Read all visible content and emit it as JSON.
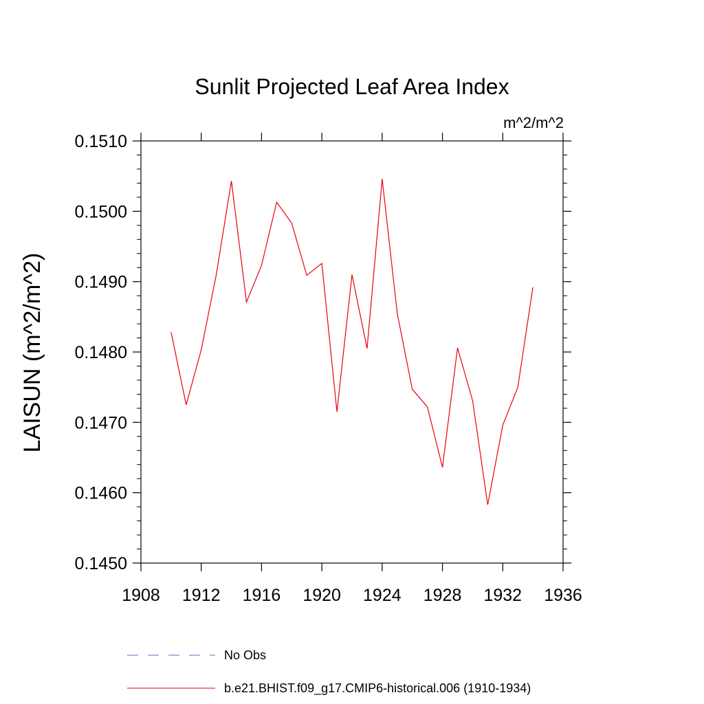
{
  "chart_data": {
    "type": "line",
    "title": "Sunlit Projected Leaf Area Index",
    "units_label": "m^2/m^2",
    "ylabel": "LAISUN  (m^2/m^2)",
    "xlabel": "",
    "xlim": [
      1908,
      1936
    ],
    "ylim": [
      0.145,
      0.151
    ],
    "x_ticks": [
      1908,
      1912,
      1916,
      1920,
      1924,
      1928,
      1932,
      1936
    ],
    "x_tick_labels": [
      "1908",
      "1912",
      "1916",
      "1920",
      "1924",
      "1928",
      "1932",
      "1936"
    ],
    "y_ticks": [
      0.145,
      0.146,
      0.147,
      0.148,
      0.149,
      0.15,
      0.151
    ],
    "y_tick_labels": [
      "0.1450",
      "0.1460",
      "0.1470",
      "0.1480",
      "0.1490",
      "0.1500",
      "0.1510"
    ],
    "grid": false,
    "series": [
      {
        "name": "b.e21.BHIST.f09_g17.CMIP6-historical.006 (1910-1934)",
        "color": "#e8000b",
        "style": "solid",
        "x": [
          1910,
          1911,
          1912,
          1913,
          1914,
          1915,
          1916,
          1917,
          1918,
          1919,
          1920,
          1921,
          1922,
          1923,
          1924,
          1925,
          1926,
          1927,
          1928,
          1929,
          1930,
          1931,
          1932,
          1933,
          1934
        ],
        "values": [
          0.14828,
          0.14725,
          0.14803,
          0.1491,
          0.15043,
          0.14871,
          0.14923,
          0.15013,
          0.14983,
          0.14909,
          0.14926,
          0.14715,
          0.1491,
          0.14805,
          0.15046,
          0.14855,
          0.14747,
          0.14722,
          0.14636,
          0.14806,
          0.14731,
          0.14583,
          0.14696,
          0.1475,
          0.14892
        ]
      }
    ],
    "legend": [
      {
        "label": "No Obs",
        "color": "#6666cc",
        "style": "dashed"
      },
      {
        "label": "b.e21.BHIST.f09_g17.CMIP6-historical.006 (1910-1934)",
        "color": "#e8000b",
        "style": "solid"
      }
    ],
    "legend_position": "bottom"
  }
}
